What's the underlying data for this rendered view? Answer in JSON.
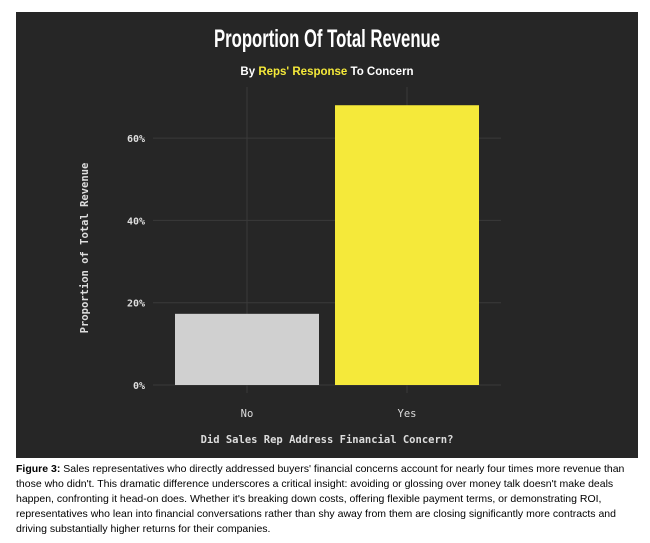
{
  "chart_data": {
    "type": "bar",
    "title": "Proportion Of Total Revenue",
    "subtitle_parts": [
      "By",
      "Reps' Response",
      "To Concern"
    ],
    "y_label": "Proportion of Total Revenue",
    "x_label": "Did Sales Rep Address Financial Concern?",
    "categories": [
      "No",
      "Yes"
    ],
    "values": [
      17.3,
      68
    ],
    "colors": [
      "#d0d0d0",
      "#f5e93a"
    ],
    "ylim": [
      0,
      70
    ],
    "yticks": [
      {
        "value": 0,
        "label": "0%"
      },
      {
        "value": 20,
        "label": "20%"
      },
      {
        "value": 40,
        "label": "40%"
      },
      {
        "value": 60,
        "label": "60%"
      }
    ],
    "grid": true
  },
  "caption": {
    "label": "Figure 3:",
    "text": "Sales representatives who directly addressed buyers' financial concerns account for nearly four times more revenue than those who didn't. This dramatic difference underscores a critical insight: avoiding or glossing over money talk doesn't make deals happen, confronting it head-on does. Whether it's breaking down costs, offering flexible payment terms, or demonstrating ROI, representatives who lean into financial conversations rather than shy away from them are closing significantly more contracts and driving substantially higher returns for their companies."
  }
}
